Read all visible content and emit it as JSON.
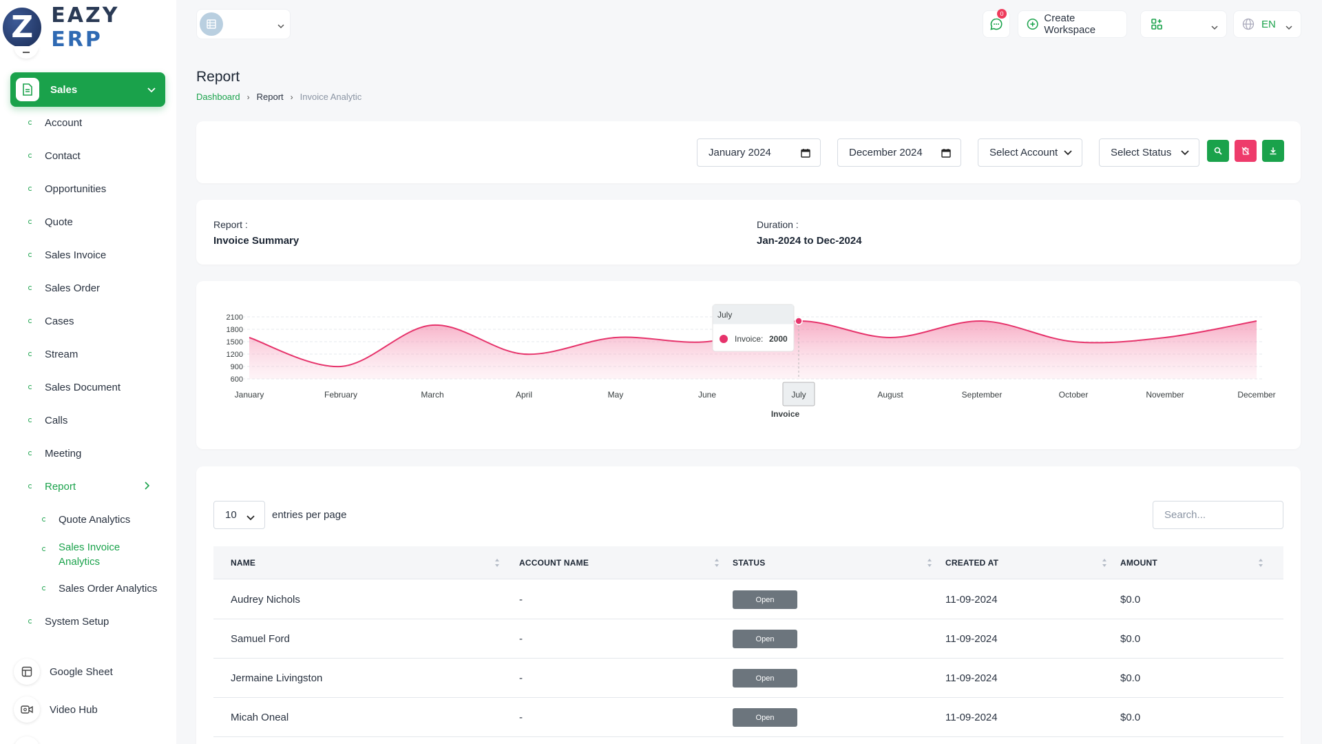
{
  "brand": {
    "logo_letter": "Z",
    "name_part1": "EAZY",
    "name_part2": "ERP"
  },
  "header": {
    "chat_badge": "0",
    "create_workspace_label": "Create Workspace",
    "language": "EN"
  },
  "sidebar": {
    "sales_label": "Sales",
    "items": [
      {
        "label": "Account"
      },
      {
        "label": "Contact"
      },
      {
        "label": "Opportunities"
      },
      {
        "label": "Quote"
      },
      {
        "label": "Sales Invoice"
      },
      {
        "label": "Sales Order"
      },
      {
        "label": "Cases"
      },
      {
        "label": "Stream"
      },
      {
        "label": "Sales Document"
      },
      {
        "label": "Calls"
      },
      {
        "label": "Meeting"
      },
      {
        "label": "Report"
      }
    ],
    "report_sub": [
      {
        "label": "Quote Analytics"
      },
      {
        "label": "Sales Invoice Analytics"
      },
      {
        "label": "Sales Order Analytics"
      }
    ],
    "system_setup_label": "System Setup",
    "google_sheet_label": "Google Sheet",
    "video_hub_label": "Video Hub"
  },
  "page": {
    "title": "Report",
    "breadcrumb": [
      "Dashboard",
      "Report",
      "Invoice Analytic"
    ]
  },
  "filters": {
    "start_month": "January 2024",
    "end_month": "December 2024",
    "account": "Select Account",
    "status": "Select Status",
    "colors": {
      "search": "#1aa24b",
      "reset": "#ee3b6b",
      "download": "#1aa24b"
    }
  },
  "summary": {
    "report_label": "Report :",
    "report_value": "Invoice Summary",
    "duration_label": "Duration :",
    "duration_value": "Jan-2024 to Dec-2024"
  },
  "chart_data": {
    "type": "area",
    "categories": [
      "January",
      "February",
      "March",
      "April",
      "May",
      "June",
      "July",
      "August",
      "September",
      "October",
      "November",
      "December"
    ],
    "series": [
      {
        "name": "Invoice",
        "values": [
          1600,
          900,
          1900,
          1200,
          1600,
          1500,
          2000,
          1600,
          2000,
          1500,
          1600,
          2000
        ]
      }
    ],
    "xlabel": "Invoice",
    "ylabel": "",
    "yticks": [
      2100,
      1800,
      1500,
      1200,
      900,
      600
    ],
    "ylim": [
      600,
      2100
    ],
    "grid": true,
    "color": "#e6336b",
    "tooltip": {
      "title": "July",
      "series_label": "Invoice:",
      "value": "2000"
    }
  },
  "table": {
    "entries_value": "10",
    "entries_label": "entries per page",
    "search_placeholder": "Search...",
    "columns": [
      "NAME",
      "ACCOUNT NAME",
      "STATUS",
      "CREATED AT",
      "AMOUNT"
    ],
    "rows": [
      {
        "name": "Audrey Nichols",
        "account": "-",
        "status": "Open",
        "created": "11-09-2024",
        "amount": "$0.0"
      },
      {
        "name": "Samuel Ford",
        "account": "-",
        "status": "Open",
        "created": "11-09-2024",
        "amount": "$0.0"
      },
      {
        "name": "Jermaine Livingston",
        "account": "-",
        "status": "Open",
        "created": "11-09-2024",
        "amount": "$0.0"
      },
      {
        "name": "Micah Oneal",
        "account": "-",
        "status": "Open",
        "created": "11-09-2024",
        "amount": "$0.0"
      }
    ]
  }
}
